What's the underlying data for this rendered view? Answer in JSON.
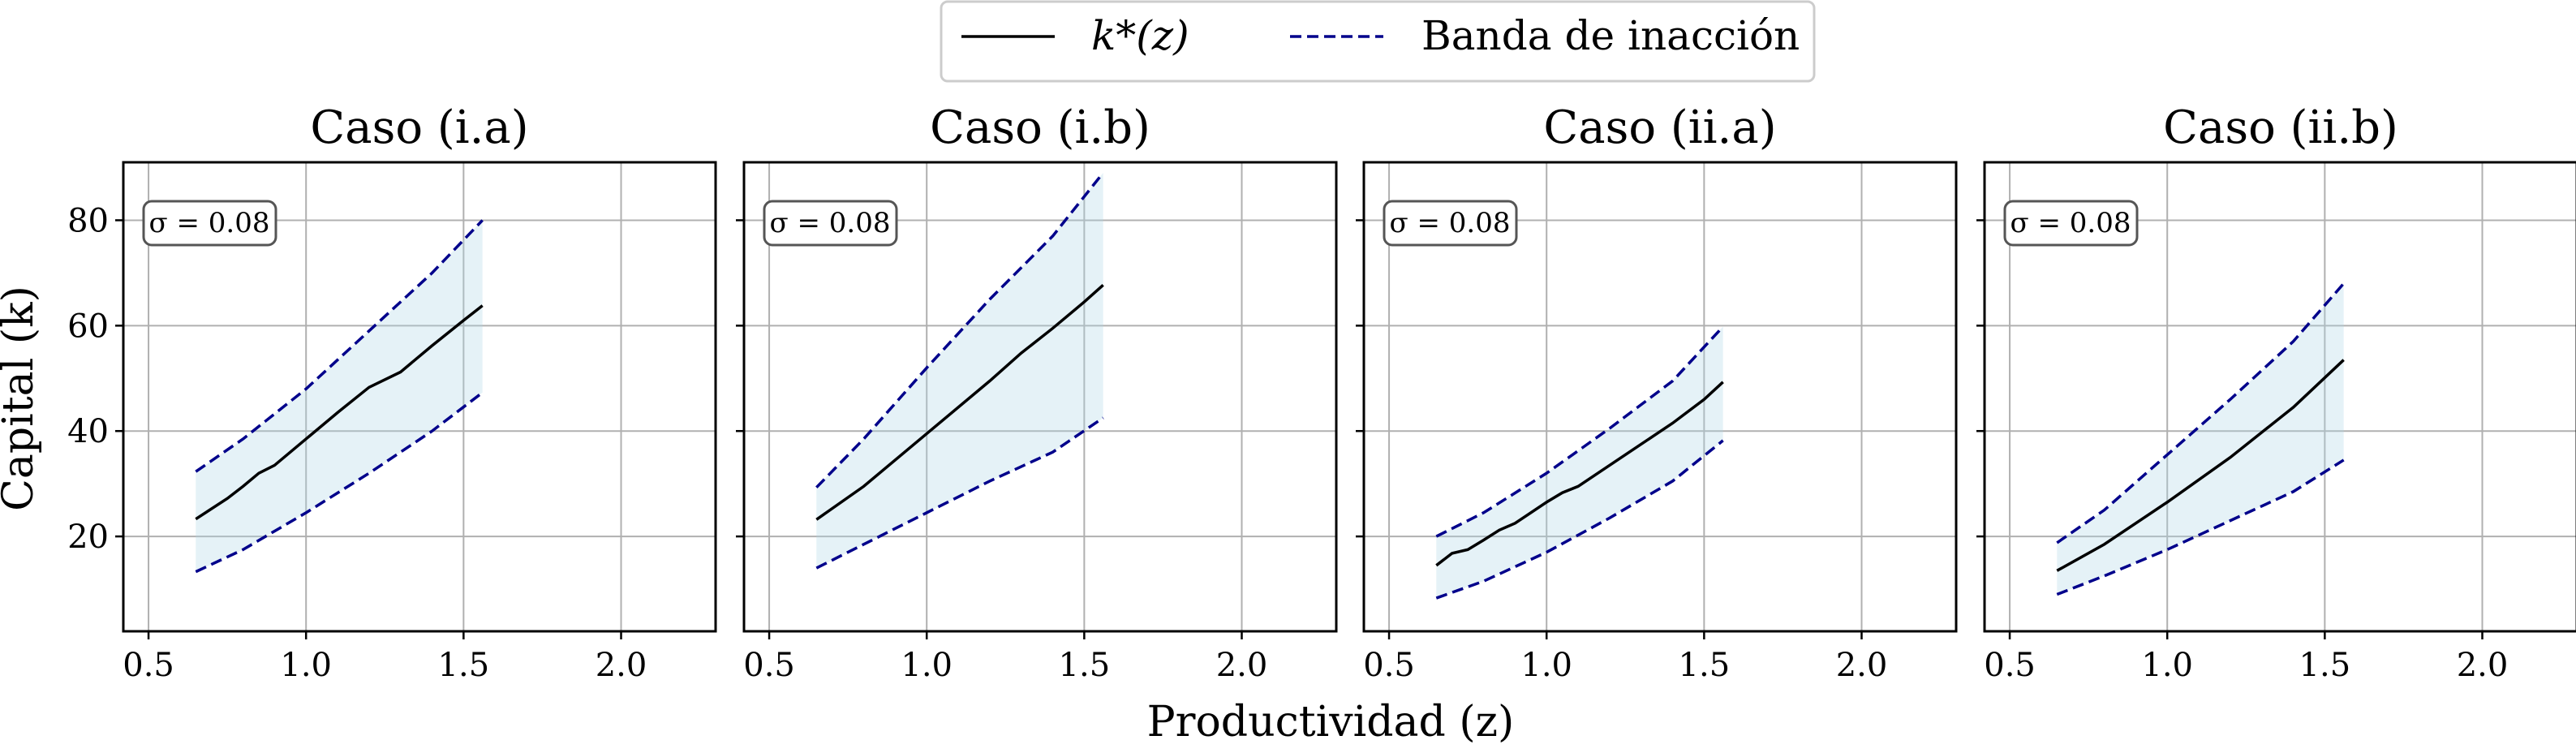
{
  "figure": {
    "xlabel": "Productividad (z)",
    "ylabel": "Capital (k)",
    "legend": {
      "placement": "top-center",
      "entries": [
        {
          "label": "k*(z)",
          "style": "solid",
          "color": "#000000"
        },
        {
          "label": "Banda de inacción",
          "style": "dashed",
          "color": "#00008b"
        }
      ]
    },
    "band_fill_color": "#add8e6"
  },
  "chart_data": [
    {
      "type": "line",
      "title": "Caso (i.a)",
      "annotation": "σ = 0.08",
      "xlim": [
        0.42,
        2.3
      ],
      "ylim": [
        2,
        91
      ],
      "xticks": [
        0.5,
        1.0,
        1.5,
        2.0
      ],
      "yticks": [
        20,
        40,
        60,
        80
      ],
      "grid": true,
      "series": [
        {
          "name": "k*(z)",
          "x": [
            0.65,
            0.75,
            0.8,
            0.85,
            0.9,
            1.0,
            1.1,
            1.2,
            1.3,
            1.4,
            1.5,
            1.56
          ],
          "y": [
            23.3,
            27.2,
            29.5,
            32.0,
            33.5,
            38.5,
            43.5,
            48.3,
            51.2,
            56.2,
            61.0,
            63.8
          ]
        },
        {
          "name": "Banda de inacción (superior)",
          "x": [
            0.65,
            0.8,
            1.0,
            1.2,
            1.4,
            1.56
          ],
          "y": [
            32.3,
            38.5,
            48.0,
            59.0,
            70.0,
            80.0
          ]
        },
        {
          "name": "Banda de inacción (inferior)",
          "x": [
            0.65,
            0.8,
            1.0,
            1.2,
            1.4,
            1.56
          ],
          "y": [
            13.3,
            17.5,
            24.5,
            32.0,
            40.0,
            47.3
          ]
        }
      ]
    },
    {
      "type": "line",
      "title": "Caso (i.b)",
      "annotation": "σ = 0.08",
      "xlim": [
        0.42,
        2.3
      ],
      "ylim": [
        2,
        91
      ],
      "xticks": [
        0.5,
        1.0,
        1.5,
        2.0
      ],
      "yticks": [
        20,
        40,
        60,
        80
      ],
      "grid": true,
      "series": [
        {
          "name": "k*(z)",
          "x": [
            0.65,
            0.8,
            1.0,
            1.2,
            1.3,
            1.4,
            1.5,
            1.56
          ],
          "y": [
            23.2,
            29.5,
            39.5,
            49.5,
            54.8,
            59.5,
            64.5,
            67.7
          ]
        },
        {
          "name": "Banda de inacción (superior)",
          "x": [
            0.65,
            0.8,
            1.0,
            1.2,
            1.4,
            1.56
          ],
          "y": [
            29.3,
            38.5,
            52.0,
            65.0,
            77.0,
            89.0
          ]
        },
        {
          "name": "Banda de inacción (inferior)",
          "x": [
            0.65,
            0.8,
            1.0,
            1.2,
            1.4,
            1.56
          ],
          "y": [
            14.0,
            18.5,
            24.5,
            30.5,
            36.0,
            42.5
          ]
        }
      ]
    },
    {
      "type": "line",
      "title": "Caso (ii.a)",
      "annotation": "σ = 0.08",
      "xlim": [
        0.42,
        2.3
      ],
      "ylim": [
        2,
        91
      ],
      "xticks": [
        0.5,
        1.0,
        1.5,
        2.0
      ],
      "yticks": [
        20,
        40,
        60,
        80
      ],
      "grid": true,
      "series": [
        {
          "name": "k*(z)",
          "x": [
            0.65,
            0.7,
            0.75,
            0.8,
            0.85,
            0.9,
            1.0,
            1.05,
            1.1,
            1.2,
            1.3,
            1.4,
            1.5,
            1.56
          ],
          "y": [
            14.5,
            16.8,
            17.5,
            19.3,
            21.2,
            22.5,
            26.5,
            28.3,
            29.5,
            33.5,
            37.5,
            41.5,
            46.0,
            49.3
          ]
        },
        {
          "name": "Banda de inacción (superior)",
          "x": [
            0.65,
            0.8,
            1.0,
            1.2,
            1.4,
            1.56
          ],
          "y": [
            20.0,
            24.5,
            32.0,
            40.5,
            49.5,
            59.8
          ]
        },
        {
          "name": "Banda de inacción (inferior)",
          "x": [
            0.65,
            0.8,
            1.0,
            1.2,
            1.4,
            1.56
          ],
          "y": [
            8.3,
            11.5,
            17.0,
            23.5,
            30.5,
            38.2
          ]
        }
      ]
    },
    {
      "type": "line",
      "title": "Caso (ii.b)",
      "annotation": "σ = 0.08",
      "xlim": [
        0.42,
        2.3
      ],
      "ylim": [
        2,
        91
      ],
      "xticks": [
        0.5,
        1.0,
        1.5,
        2.0
      ],
      "yticks": [
        20,
        40,
        60,
        80
      ],
      "grid": true,
      "series": [
        {
          "name": "k*(z)",
          "x": [
            0.65,
            0.8,
            1.0,
            1.2,
            1.4,
            1.56
          ],
          "y": [
            13.5,
            18.5,
            26.5,
            35.0,
            44.5,
            53.5
          ]
        },
        {
          "name": "Banda de inacción (superior)",
          "x": [
            0.65,
            0.8,
            1.0,
            1.2,
            1.4,
            1.56
          ],
          "y": [
            18.8,
            25.0,
            35.5,
            46.0,
            57.0,
            68.0
          ]
        },
        {
          "name": "Banda de inacción (inferior)",
          "x": [
            0.65,
            0.8,
            1.0,
            1.2,
            1.4,
            1.56
          ],
          "y": [
            9.0,
            12.5,
            17.5,
            23.0,
            28.5,
            34.5
          ]
        }
      ]
    }
  ]
}
